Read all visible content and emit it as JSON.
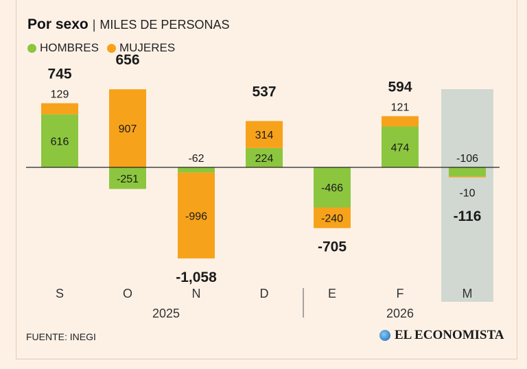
{
  "header": {
    "title": "Por sexo",
    "separator": "|",
    "subtitle": "MILES DE PERSONAS"
  },
  "legend": [
    {
      "label": "HOMBRES",
      "color": "#8cc63f"
    },
    {
      "label": "MUJERES",
      "color": "#f7a21b"
    }
  ],
  "footer": {
    "source": "FUENTE: INEGI",
    "brand": "EL ECONOMISTA"
  },
  "chart_data": {
    "type": "bar",
    "stacked": true,
    "categories": [
      "S",
      "O",
      "N",
      "D",
      "E",
      "F",
      "M"
    ],
    "year_groups": [
      {
        "label": "2025",
        "categories": [
          "S",
          "O",
          "N",
          "D"
        ]
      },
      {
        "label": "2026",
        "categories": [
          "E",
          "F",
          "M"
        ]
      }
    ],
    "series": [
      {
        "name": "HOMBRES",
        "color": "#8cc63f",
        "values": [
          616,
          -251,
          -62,
          224,
          -466,
          474,
          -106
        ],
        "labels": [
          "616",
          "-251",
          "-62",
          "224",
          "-466",
          "474",
          "-106"
        ]
      },
      {
        "name": "MUJERES",
        "color": "#f7a21b",
        "values": [
          129,
          907,
          -996,
          314,
          -240,
          121,
          -10
        ],
        "labels": [
          "129",
          "907",
          "-996",
          "314",
          "-240",
          "121",
          "-10"
        ]
      }
    ],
    "totals": [
      745,
      656,
      -1058,
      537,
      -705,
      594,
      -116
    ],
    "total_labels": [
      "745",
      "656",
      "-1,058",
      "537",
      "-705",
      "594",
      "-116"
    ],
    "highlight_category": "M",
    "highlight_color": "#c9d3cd",
    "ylim": [
      -1058,
      907
    ]
  }
}
